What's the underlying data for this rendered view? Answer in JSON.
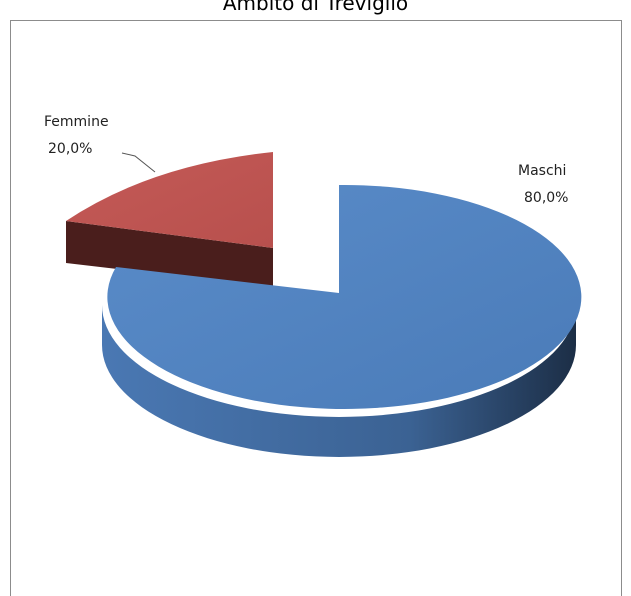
{
  "chart_data": {
    "type": "pie",
    "title": "Ambito di Treviglio",
    "categories": [
      "Maschi",
      "Femmine"
    ],
    "values": [
      80.0,
      20.0
    ],
    "value_labels": [
      "80,0%",
      "20,0%"
    ],
    "colors": {
      "Maschi": "#4F81BD",
      "Femmine": "#C0504D"
    },
    "style": "3d-exploded"
  }
}
